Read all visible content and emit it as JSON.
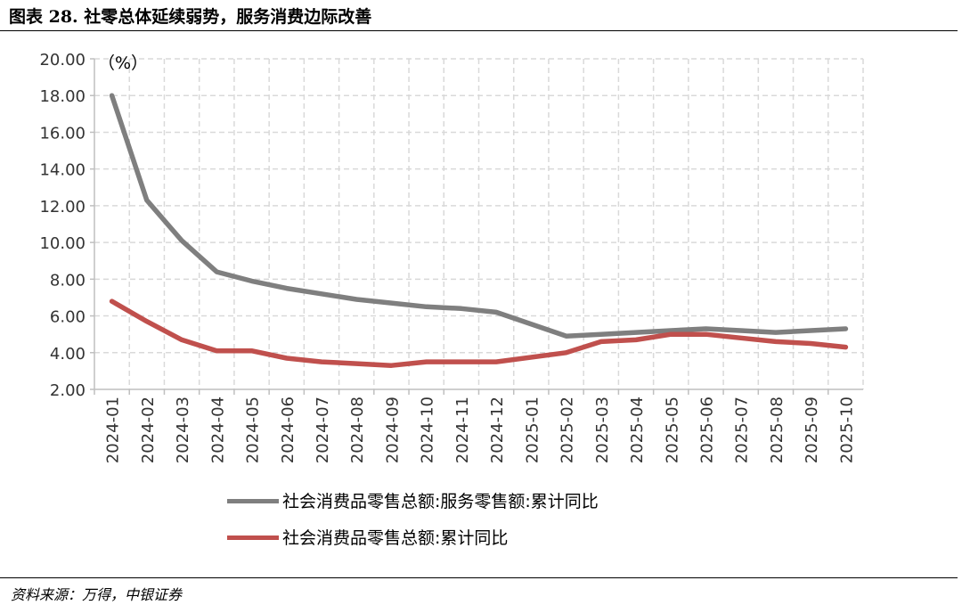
{
  "figure": {
    "title": "图表 28. 社零总体延续弱势，服务消费边际改善",
    "source": "资料来源：万得，中银证券"
  },
  "colors": {
    "series_services": "#7f7f7f",
    "series_total": "#c0504d",
    "grid": "#d9d9d9",
    "axis": "#bfbfbf"
  },
  "chart_data": {
    "type": "line",
    "title": "",
    "xlabel": "",
    "ylabel": "（%）",
    "ylim": [
      2.0,
      20.0
    ],
    "y_ticks": [
      "20.00",
      "18.00",
      "16.00",
      "14.00",
      "12.00",
      "10.00",
      "8.00",
      "6.00",
      "4.00",
      "2.00"
    ],
    "grid": true,
    "legend_position": "bottom",
    "x": [
      "2024-01",
      "2024-02",
      "2024-03",
      "2024-04",
      "2024-05",
      "2024-06",
      "2024-07",
      "2024-08",
      "2024-09",
      "2024-10",
      "2024-11",
      "2024-12",
      "2025-01",
      "2025-02",
      "2025-03",
      "2025-04",
      "2025-05",
      "2025-06",
      "2025-07",
      "2025-08",
      "2025-09",
      "2025-10"
    ],
    "series": [
      {
        "name": "社会消费品零售总额:服务零售额:累计同比",
        "color": "#7f7f7f",
        "values": [
          18.0,
          12.3,
          10.1,
          8.4,
          7.9,
          7.5,
          7.2,
          6.9,
          6.7,
          6.5,
          6.4,
          6.2,
          null,
          4.9,
          5.0,
          5.1,
          5.2,
          5.3,
          5.2,
          5.1,
          5.2,
          5.3
        ]
      },
      {
        "name": "社会消费品零售总额:累计同比",
        "color": "#c0504d",
        "values": [
          6.8,
          5.7,
          4.7,
          4.1,
          4.1,
          3.7,
          3.5,
          3.4,
          3.3,
          3.5,
          3.5,
          3.5,
          null,
          4.0,
          4.6,
          4.7,
          5.0,
          5.0,
          4.8,
          4.6,
          4.5,
          4.3
        ]
      }
    ]
  }
}
